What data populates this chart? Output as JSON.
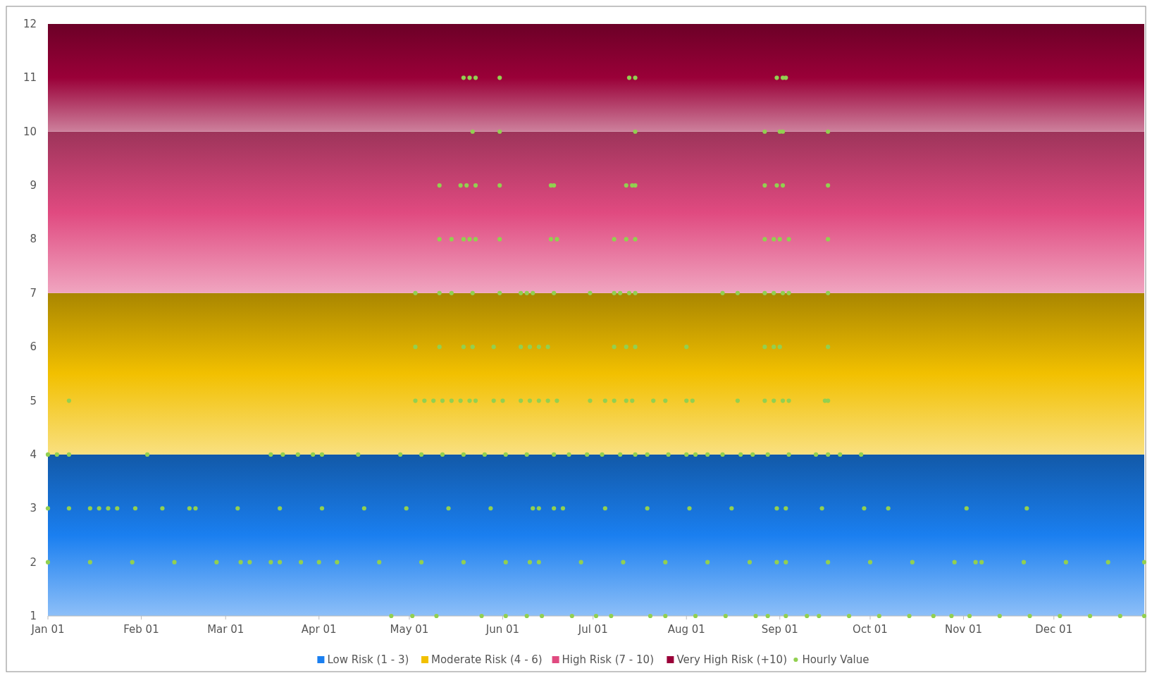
{
  "chart_data": {
    "type": "scatter",
    "marker": "circle",
    "legend": "bottom",
    "grid": false,
    "xlim": [
      "--01-01",
      "--12-31"
    ],
    "xticks": [
      {
        "value": "--01-01",
        "label": "Jan 01"
      },
      {
        "value": "--02-01",
        "label": "Feb 01"
      },
      {
        "value": "--03-01",
        "label": "Mar 01"
      },
      {
        "value": "--04-01",
        "label": "Apr 01"
      },
      {
        "value": "--05-01",
        "label": "May 01"
      },
      {
        "value": "--06-01",
        "label": "Jun 01"
      },
      {
        "value": "--07-01",
        "label": "Jul 01"
      },
      {
        "value": "--08-01",
        "label": "Aug 01"
      },
      {
        "value": "--09-01",
        "label": "Sep 01"
      },
      {
        "value": "--10-01",
        "label": "Oct 01"
      },
      {
        "value": "--11-01",
        "label": "Nov 01"
      },
      {
        "value": "--12-01",
        "label": "Dec 01"
      }
    ],
    "ylim": [
      1,
      12
    ],
    "yticks": [
      1,
      2,
      3,
      4,
      5,
      6,
      7,
      8,
      9,
      10,
      11,
      12
    ],
    "bands": [
      {
        "axis": "y",
        "from": 1,
        "to": 4,
        "label": "Low Risk (1 - 3)",
        "color": "#1a7ff0"
      },
      {
        "axis": "y",
        "from": 4,
        "to": 7,
        "label": "Moderate Risk (4 - 6)",
        "color": "#f2c000"
      },
      {
        "axis": "y",
        "from": 7,
        "to": 10,
        "label": "High Risk (7 - 10)",
        "color": "#e04a80"
      },
      {
        "axis": "y",
        "from": 10,
        "to": 12,
        "label": "Very High Risk (+10)",
        "color": "#9a0038"
      }
    ],
    "series": [
      {
        "name": "Hourly Value",
        "color": "#92d050",
        "x": [
          "--05-19",
          "--05-21",
          "--05-23",
          "--05-31",
          "--07-13",
          "--07-15",
          "--08-31",
          "--09-02",
          "--09-03",
          "--05-22",
          "--05-31",
          "--07-15",
          "--08-27",
          "--09-01",
          "--09-02",
          "--09-17",
          "--05-11",
          "--05-18",
          "--05-20",
          "--05-23",
          "--05-31",
          "--06-17",
          "--06-18",
          "--07-12",
          "--07-14",
          "--07-15",
          "--08-27",
          "--08-31",
          "--09-02",
          "--09-17",
          "--05-11",
          "--05-15",
          "--05-19",
          "--05-21",
          "--05-23",
          "--05-31",
          "--06-17",
          "--06-19",
          "--07-08",
          "--07-12",
          "--07-15",
          "--08-27",
          "--08-30",
          "--09-01",
          "--09-04",
          "--09-17",
          "--05-03",
          "--05-11",
          "--05-15",
          "--05-22",
          "--05-31",
          "--06-07",
          "--06-09",
          "--06-11",
          "--06-18",
          "--06-30",
          "--07-08",
          "--07-10",
          "--07-13",
          "--07-15",
          "--08-13",
          "--08-18",
          "--08-27",
          "--08-30",
          "--09-02",
          "--09-04",
          "--09-17",
          "--05-03",
          "--05-11",
          "--05-19",
          "--05-22",
          "--05-29",
          "--06-07",
          "--06-10",
          "--06-13",
          "--06-16",
          "--07-08",
          "--07-12",
          "--07-15",
          "--08-01",
          "--08-27",
          "--08-30",
          "--09-01",
          "--09-17",
          "--01-08",
          "--05-03",
          "--05-06",
          "--05-09",
          "--05-12",
          "--05-15",
          "--05-18",
          "--05-21",
          "--05-23",
          "--05-29",
          "--06-01",
          "--06-07",
          "--06-10",
          "--06-13",
          "--06-16",
          "--06-19",
          "--06-30",
          "--07-05",
          "--07-08",
          "--07-12",
          "--07-14",
          "--07-21",
          "--07-25",
          "--08-01",
          "--08-03",
          "--08-18",
          "--08-27",
          "--08-30",
          "--09-02",
          "--09-04",
          "--09-16",
          "--09-17",
          "--01-01",
          "--01-04",
          "--01-08",
          "--02-03",
          "--03-16",
          "--03-20",
          "--03-25",
          "--03-30",
          "--04-02",
          "--04-14",
          "--04-28",
          "--05-05",
          "--05-12",
          "--05-19",
          "--05-26",
          "--06-02",
          "--06-09",
          "--06-18",
          "--06-23",
          "--06-29",
          "--07-04",
          "--07-10",
          "--07-15",
          "--07-19",
          "--07-26",
          "--08-01",
          "--08-04",
          "--08-08",
          "--08-13",
          "--08-19",
          "--08-23",
          "--08-28",
          "--09-04",
          "--09-13",
          "--09-17",
          "--09-21",
          "--09-28",
          "--01-01",
          "--01-08",
          "--01-15",
          "--01-18",
          "--01-21",
          "--01-24",
          "--01-30",
          "--02-08",
          "--02-17",
          "--02-19",
          "--03-05",
          "--03-19",
          "--04-02",
          "--04-16",
          "--04-30",
          "--05-14",
          "--05-28",
          "--06-11",
          "--06-13",
          "--06-18",
          "--06-21",
          "--07-05",
          "--07-19",
          "--08-02",
          "--08-16",
          "--08-31",
          "--09-03",
          "--09-15",
          "--09-29",
          "--10-07",
          "--11-02",
          "--11-22",
          "--01-01",
          "--01-15",
          "--01-29",
          "--02-12",
          "--02-26",
          "--03-06",
          "--03-09",
          "--03-16",
          "--03-19",
          "--03-26",
          "--04-01",
          "--04-07",
          "--04-21",
          "--05-05",
          "--05-19",
          "--06-02",
          "--06-10",
          "--06-13",
          "--06-27",
          "--07-11",
          "--07-25",
          "--08-08",
          "--08-22",
          "--08-31",
          "--09-03",
          "--09-17",
          "--10-01",
          "--10-15",
          "--10-29",
          "--11-05",
          "--11-07",
          "--11-21",
          "--12-05",
          "--12-19",
          "--12-31",
          "--04-25",
          "--05-02",
          "--05-10",
          "--05-25",
          "--06-02",
          "--06-09",
          "--06-14",
          "--06-24",
          "--07-02",
          "--07-07",
          "--07-20",
          "--07-25",
          "--08-04",
          "--08-14",
          "--08-24",
          "--08-28",
          "--09-03",
          "--09-10",
          "--09-14",
          "--09-24",
          "--10-04",
          "--10-14",
          "--10-22",
          "--10-28",
          "--11-03",
          "--11-13",
          "--11-23",
          "--12-03",
          "--12-13",
          "--12-23",
          "--12-31"
        ],
        "values": [
          11,
          11,
          11,
          11,
          11,
          11,
          11,
          11,
          11,
          10,
          10,
          10,
          10,
          10,
          10,
          10,
          9,
          9,
          9,
          9,
          9,
          9,
          9,
          9,
          9,
          9,
          9,
          9,
          9,
          9,
          8,
          8,
          8,
          8,
          8,
          8,
          8,
          8,
          8,
          8,
          8,
          8,
          8,
          8,
          8,
          8,
          7,
          7,
          7,
          7,
          7,
          7,
          7,
          7,
          7,
          7,
          7,
          7,
          7,
          7,
          7,
          7,
          7,
          7,
          7,
          7,
          7,
          6,
          6,
          6,
          6,
          6,
          6,
          6,
          6,
          6,
          6,
          6,
          6,
          6,
          6,
          6,
          6,
          6,
          5,
          5,
          5,
          5,
          5,
          5,
          5,
          5,
          5,
          5,
          5,
          5,
          5,
          5,
          5,
          5,
          5,
          5,
          5,
          5,
          5,
          5,
          5,
          5,
          5,
          5,
          5,
          5,
          5,
          5,
          5,
          5,
          4,
          4,
          4,
          4,
          4,
          4,
          4,
          4,
          4,
          4,
          4,
          4,
          4,
          4,
          4,
          4,
          4,
          4,
          4,
          4,
          4,
          4,
          4,
          4,
          4,
          4,
          4,
          4,
          4,
          4,
          4,
          4,
          4,
          4,
          4,
          4,
          4,
          3,
          3,
          3,
          3,
          3,
          3,
          3,
          3,
          3,
          3,
          3,
          3,
          3,
          3,
          3,
          3,
          3,
          3,
          3,
          3,
          3,
          3,
          3,
          3,
          3,
          3,
          3,
          3,
          3,
          3,
          3,
          3,
          2,
          2,
          2,
          2,
          2,
          2,
          2,
          2,
          2,
          2,
          2,
          2,
          2,
          2,
          2,
          2,
          2,
          2,
          2,
          2,
          2,
          2,
          2,
          2,
          2,
          2,
          2,
          2,
          2,
          2,
          2,
          2,
          2,
          2,
          2,
          1,
          1,
          1,
          1,
          1,
          1,
          1,
          1,
          1,
          1,
          1,
          1,
          1,
          1,
          1,
          1,
          1,
          1,
          1,
          1,
          1,
          1,
          1,
          1,
          1,
          1,
          1,
          1,
          1,
          1,
          1
        ]
      }
    ]
  }
}
